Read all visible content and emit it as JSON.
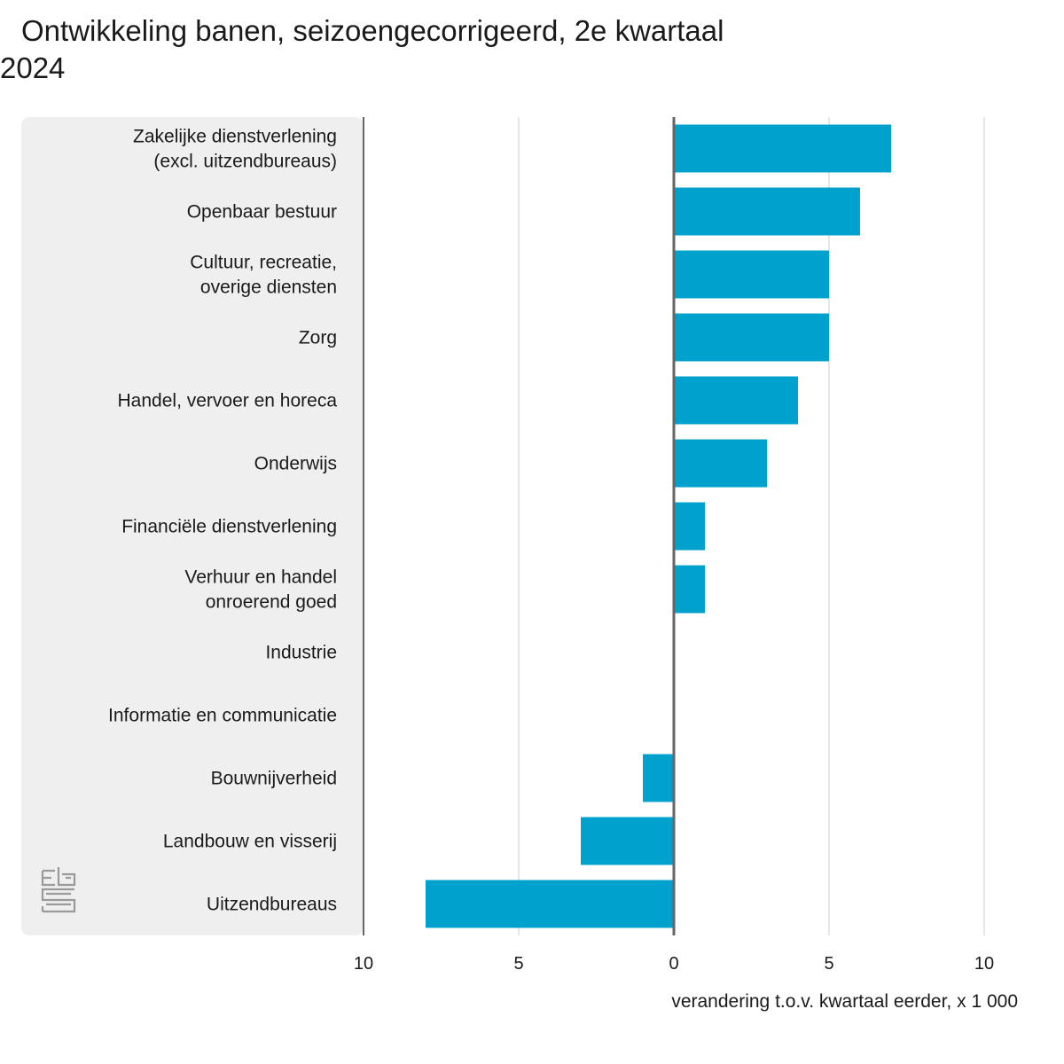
{
  "chart_data": {
    "type": "bar",
    "orientation": "horizontal",
    "title": "Ontwikkeling banen, seizoengecorrigeerd, 2e kwartaal 2024",
    "xlabel": "verandering t.o.v. kwartaal eerder, x 1 000",
    "ylabel": "",
    "xlim": [
      -10,
      10
    ],
    "xticks": [
      -10,
      -5,
      0,
      5,
      10
    ],
    "xtick_labels": [
      "10",
      "5",
      "0",
      "5",
      "10"
    ],
    "grid": true,
    "categories": [
      [
        "Zakelijke dienstverlening",
        "(excl. uitzendbureaus)"
      ],
      [
        "Openbaar bestuur"
      ],
      [
        "Cultuur, recreatie,",
        "overige diensten"
      ],
      [
        "Zorg"
      ],
      [
        "Handel, vervoer en horeca"
      ],
      [
        "Onderwijs"
      ],
      [
        "Financiële dienstverlening"
      ],
      [
        "Verhuur en handel",
        "onroerend goed"
      ],
      [
        "Industrie"
      ],
      [
        "Informatie en communicatie"
      ],
      [
        "Bouwnijverheid"
      ],
      [
        "Landbouw en visserij"
      ],
      [
        "Uitzendbureaus"
      ]
    ],
    "values": [
      7,
      6,
      5,
      5,
      4,
      3,
      1,
      1,
      0,
      0,
      -1,
      -3,
      -8
    ],
    "colors": {
      "bar": "#00a1cd",
      "label_panel": "#efefef",
      "grid": "#cccccc",
      "axis": "#666666"
    }
  },
  "logo": {
    "name": "cbs-logo-icon",
    "text": "cbs"
  }
}
